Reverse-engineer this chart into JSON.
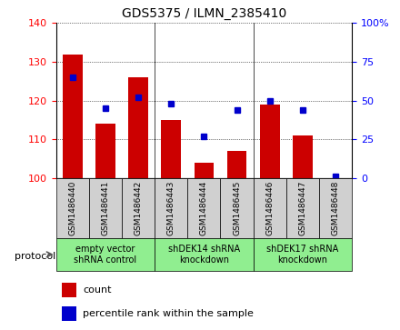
{
  "title": "GDS5375 / ILMN_2385410",
  "samples": [
    "GSM1486440",
    "GSM1486441",
    "GSM1486442",
    "GSM1486443",
    "GSM1486444",
    "GSM1486445",
    "GSM1486446",
    "GSM1486447",
    "GSM1486448"
  ],
  "counts": [
    132,
    114,
    126,
    115,
    104,
    107,
    119,
    111,
    100
  ],
  "percentiles": [
    65,
    45,
    52,
    48,
    27,
    44,
    50,
    44,
    1
  ],
  "ylim_left": [
    100,
    140
  ],
  "ylim_right": [
    0,
    100
  ],
  "yticks_left": [
    100,
    110,
    120,
    130,
    140
  ],
  "yticks_right": [
    0,
    25,
    50,
    75,
    100
  ],
  "bar_color": "#cc0000",
  "dot_color": "#0000cc",
  "protocols": [
    {
      "label": "empty vector\nshRNA control",
      "start": 0,
      "end": 3
    },
    {
      "label": "shDEK14 shRNA\nknockdown",
      "start": 3,
      "end": 6
    },
    {
      "label": "shDEK17 shRNA\nknockdown",
      "start": 6,
      "end": 9
    }
  ],
  "protocol_label": "protocol",
  "legend_count": "count",
  "legend_percentile": "percentile rank within the sample",
  "tick_bg_color": "#d0d0d0",
  "proto_color": "#90EE90",
  "plot_bg": "#ffffff"
}
